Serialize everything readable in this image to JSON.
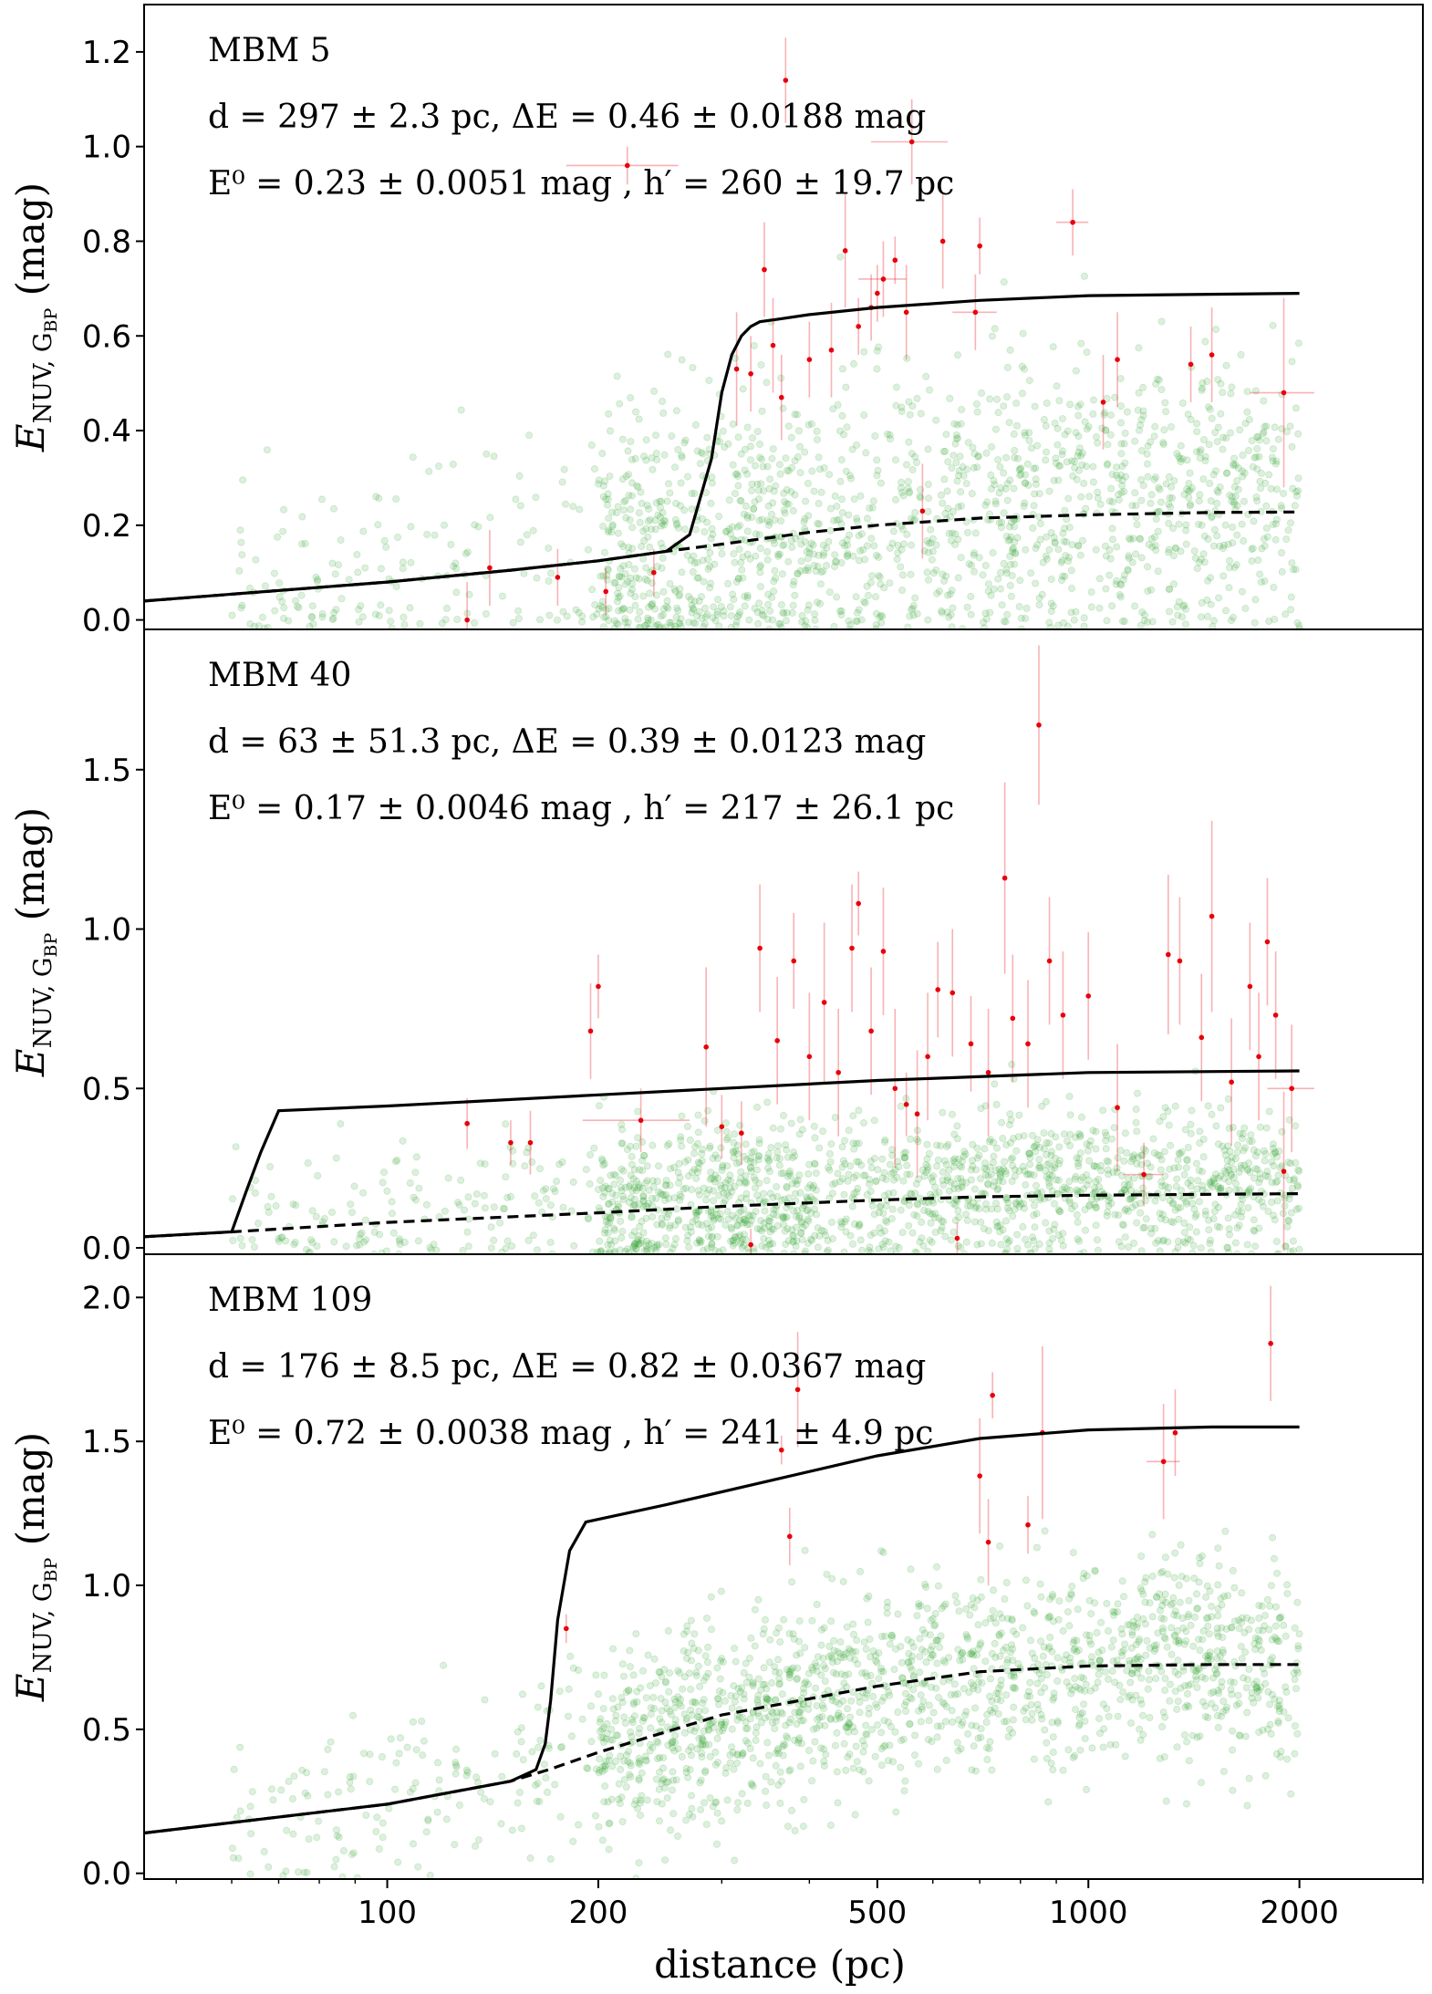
{
  "chart_data": [
    {
      "type": "scatter",
      "name_label": "MBM 5",
      "ann_line2": "d = 297 ± 2.3 pc,  ΔE = 0.46 ± 0.0188 mag",
      "ann_line3": "E⁰ = 0.23 ± 0.0051 mag ,  h′ = 260 ± 19.7 pc",
      "ylabel": "E NUV, G BP (mag)",
      "ylim": [
        -0.02,
        1.3
      ],
      "xscale": "log",
      "xlim": [
        45,
        3000
      ],
      "yticks": [
        "0.0",
        "0.2",
        "0.4",
        "0.6",
        "0.8",
        "1.0",
        "1.2"
      ],
      "ytick_values": [
        0,
        0.2,
        0.4,
        0.6,
        0.8,
        1.0,
        1.2
      ],
      "params": {
        "d": 297,
        "dE": 0.46,
        "E0": 0.23,
        "h": 260,
        "bg_spread": 0.16
      },
      "series": [
        {
          "name": "total",
          "style": "solid",
          "x": [
            45,
            100,
            150,
            200,
            250,
            270,
            290,
            300,
            310,
            320,
            330,
            340,
            360,
            400,
            500,
            700,
            1000,
            2000
          ],
          "y": [
            0.04,
            0.08,
            0.105,
            0.125,
            0.145,
            0.18,
            0.34,
            0.48,
            0.56,
            0.6,
            0.62,
            0.63,
            0.635,
            0.645,
            0.66,
            0.675,
            0.685,
            0.69
          ]
        },
        {
          "name": "foreground",
          "style": "dashed",
          "x": [
            45,
            100,
            150,
            200,
            250,
            300,
            400,
            500,
            700,
            1000,
            1500,
            2000
          ],
          "y": [
            0.04,
            0.08,
            0.105,
            0.125,
            0.145,
            0.16,
            0.185,
            0.2,
            0.215,
            0.222,
            0.227,
            0.228
          ]
        }
      ],
      "red_points": [
        {
          "x": 130,
          "y": 0.0,
          "ey": 0.08
        },
        {
          "x": 140,
          "y": 0.11,
          "ey": 0.08
        },
        {
          "x": 175,
          "y": 0.09,
          "ey": 0.06
        },
        {
          "x": 205,
          "y": 0.06,
          "ey": 0.05
        },
        {
          "x": 220,
          "y": 0.96,
          "ex": 40,
          "ey": 0.04
        },
        {
          "x": 240,
          "y": 0.1,
          "ey": 0.05
        },
        {
          "x": 315,
          "y": 0.53,
          "ey": 0.12
        },
        {
          "x": 330,
          "y": 0.52,
          "ey": 0.08
        },
        {
          "x": 345,
          "y": 0.74,
          "ey": 0.1
        },
        {
          "x": 355,
          "y": 0.58,
          "ey": 0.1
        },
        {
          "x": 365,
          "y": 0.47,
          "ey": 0.09
        },
        {
          "x": 370,
          "y": 1.14,
          "ey": 0.09
        },
        {
          "x": 400,
          "y": 0.55,
          "ey": 0.08
        },
        {
          "x": 430,
          "y": 0.57,
          "ey": 0.1
        },
        {
          "x": 450,
          "y": 0.78,
          "ey": 0.12
        },
        {
          "x": 470,
          "y": 0.62,
          "ey": 0.06
        },
        {
          "x": 490,
          "y": 0.66,
          "ey": 0.07
        },
        {
          "x": 500,
          "y": 0.69,
          "ey": 0.06
        },
        {
          "x": 510,
          "y": 0.72,
          "ex": 40,
          "ey": 0.08
        },
        {
          "x": 530,
          "y": 0.76,
          "ey": 0.05
        },
        {
          "x": 550,
          "y": 0.65,
          "ey": 0.1
        },
        {
          "x": 560,
          "y": 1.01,
          "ex": 70,
          "ey": 0.09
        },
        {
          "x": 620,
          "y": 0.8,
          "ey": 0.1
        },
        {
          "x": 690,
          "y": 0.65,
          "ex": 50,
          "ey": 0.08
        },
        {
          "x": 700,
          "y": 0.79,
          "ey": 0.06
        },
        {
          "x": 580,
          "y": 0.23,
          "ey": 0.1
        },
        {
          "x": 950,
          "y": 0.84,
          "ex": 50,
          "ey": 0.07
        },
        {
          "x": 1050,
          "y": 0.46,
          "ey": 0.1
        },
        {
          "x": 1100,
          "y": 0.55,
          "ey": 0.1
        },
        {
          "x": 1400,
          "y": 0.54,
          "ey": 0.08
        },
        {
          "x": 1500,
          "y": 0.56,
          "ey": 0.1
        },
        {
          "x": 1900,
          "y": 0.48,
          "ex": 200,
          "ey": 0.2
        }
      ]
    },
    {
      "type": "scatter",
      "name_label": "MBM 40",
      "ann_line2": "d = 63 ± 51.3 pc,  ΔE = 0.39 ± 0.0123 mag",
      "ann_line3": "E⁰ = 0.17 ± 0.0046 mag ,  h′ = 217 ± 26.1 pc",
      "ylabel": "E NUV, G BP (mag)",
      "ylim": [
        -0.02,
        1.94
      ],
      "xscale": "log",
      "xlim": [
        45,
        3000
      ],
      "yticks": [
        "0.0",
        "0.5",
        "1.0",
        "1.5"
      ],
      "ytick_values": [
        0,
        0.5,
        1.0,
        1.5
      ],
      "params": {
        "d": 63,
        "dE": 0.39,
        "E0": 0.17,
        "h": 217,
        "bg_spread": 0.12
      },
      "series": [
        {
          "name": "total",
          "style": "solid",
          "x": [
            45,
            60,
            63,
            66,
            70,
            100,
            200,
            500,
            1000,
            2000
          ],
          "y": [
            0.035,
            0.05,
            0.18,
            0.3,
            0.43,
            0.445,
            0.48,
            0.525,
            0.55,
            0.555
          ]
        },
        {
          "name": "foreground",
          "style": "dashed",
          "x": [
            45,
            60,
            100,
            200,
            300,
            500,
            700,
            1000,
            1500,
            2000
          ],
          "y": [
            0.035,
            0.05,
            0.08,
            0.11,
            0.13,
            0.15,
            0.16,
            0.165,
            0.168,
            0.17
          ]
        }
      ],
      "red_points": [
        {
          "x": 130,
          "y": 0.39,
          "ey": 0.08
        },
        {
          "x": 150,
          "y": 0.33,
          "ey": 0.07
        },
        {
          "x": 160,
          "y": 0.33,
          "ey": 0.1
        },
        {
          "x": 195,
          "y": 0.68,
          "ey": 0.15
        },
        {
          "x": 200,
          "y": 0.82,
          "ey": 0.1
        },
        {
          "x": 230,
          "y": 0.4,
          "ex": 40,
          "ey": 0.1
        },
        {
          "x": 285,
          "y": 0.63,
          "ey": 0.25
        },
        {
          "x": 300,
          "y": 0.38,
          "ey": 0.1
        },
        {
          "x": 320,
          "y": 0.36,
          "ey": 0.1
        },
        {
          "x": 340,
          "y": 0.94,
          "ey": 0.2
        },
        {
          "x": 360,
          "y": 0.65,
          "ey": 0.2
        },
        {
          "x": 380,
          "y": 0.9,
          "ey": 0.15
        },
        {
          "x": 400,
          "y": 0.6,
          "ey": 0.2
        },
        {
          "x": 420,
          "y": 0.77,
          "ey": 0.25
        },
        {
          "x": 440,
          "y": 0.55,
          "ey": 0.2
        },
        {
          "x": 460,
          "y": 0.94,
          "ey": 0.2
        },
        {
          "x": 470,
          "y": 1.08,
          "ey": 0.1
        },
        {
          "x": 490,
          "y": 0.68,
          "ey": 0.2
        },
        {
          "x": 510,
          "y": 0.93,
          "ey": 0.2
        },
        {
          "x": 530,
          "y": 0.5,
          "ey": 0.25
        },
        {
          "x": 550,
          "y": 0.45,
          "ey": 0.1
        },
        {
          "x": 570,
          "y": 0.42,
          "ey": 0.2
        },
        {
          "x": 590,
          "y": 0.6,
          "ey": 0.2
        },
        {
          "x": 610,
          "y": 0.81,
          "ey": 0.15
        },
        {
          "x": 640,
          "y": 0.8,
          "ey": 0.2
        },
        {
          "x": 680,
          "y": 0.64,
          "ey": 0.15
        },
        {
          "x": 720,
          "y": 0.55,
          "ey": 0.2
        },
        {
          "x": 760,
          "y": 1.16,
          "ey": 0.3
        },
        {
          "x": 780,
          "y": 0.72,
          "ey": 0.2
        },
        {
          "x": 820,
          "y": 0.64,
          "ey": 0.2
        },
        {
          "x": 850,
          "y": 1.64,
          "ey": 0.25
        },
        {
          "x": 880,
          "y": 0.9,
          "ey": 0.2
        },
        {
          "x": 920,
          "y": 0.73,
          "ey": 0.2
        },
        {
          "x": 1000,
          "y": 0.79,
          "ey": 0.2
        },
        {
          "x": 1100,
          "y": 0.44,
          "ey": 0.2
        },
        {
          "x": 1200,
          "y": 0.23,
          "ex": 80,
          "ey": 0.1
        },
        {
          "x": 1300,
          "y": 0.92,
          "ey": 0.25
        },
        {
          "x": 1350,
          "y": 0.9,
          "ey": 0.2
        },
        {
          "x": 1450,
          "y": 0.66,
          "ey": 0.2
        },
        {
          "x": 1500,
          "y": 1.04,
          "ey": 0.3
        },
        {
          "x": 1600,
          "y": 0.52,
          "ey": 0.2
        },
        {
          "x": 1700,
          "y": 0.82,
          "ey": 0.2
        },
        {
          "x": 1750,
          "y": 0.6,
          "ey": 0.2
        },
        {
          "x": 1800,
          "y": 0.96,
          "ey": 0.2
        },
        {
          "x": 1850,
          "y": 0.73,
          "ey": 0.2
        },
        {
          "x": 1900,
          "y": 0.24,
          "ey": 0.25
        },
        {
          "x": 1950,
          "y": 0.5,
          "ex": 150,
          "ey": 0.2
        },
        {
          "x": 650,
          "y": 0.03,
          "ey": 0.05
        },
        {
          "x": 330,
          "y": 0.01,
          "ey": 0.05
        }
      ]
    },
    {
      "type": "scatter",
      "name_label": "MBM 109",
      "ann_line2": "d = 176 ± 8.5 pc,  ΔE = 0.82 ± 0.0367 mag",
      "ann_line3": "E⁰ = 0.72 ± 0.0038 mag ,  h′ = 241 ± 4.9 pc",
      "ylabel": "E NUV, G BP (mag)",
      "ylim": [
        -0.02,
        2.15
      ],
      "xscale": "log",
      "xlim": [
        45,
        3000
      ],
      "yticks": [
        "0.0",
        "0.5",
        "1.0",
        "1.5",
        "2.0"
      ],
      "ytick_values": [
        0,
        0.5,
        1.0,
        1.5,
        2.0
      ],
      "params": {
        "d": 176,
        "dE": 0.82,
        "E0": 0.72,
        "h": 241,
        "bg_spread": 0.17
      },
      "series": [
        {
          "name": "total",
          "style": "solid",
          "x": [
            45,
            100,
            150,
            163,
            168,
            171,
            175,
            182,
            192,
            250,
            500,
            700,
            1000,
            1500,
            2000
          ],
          "y": [
            0.14,
            0.24,
            0.32,
            0.36,
            0.45,
            0.6,
            0.88,
            1.12,
            1.22,
            1.28,
            1.45,
            1.51,
            1.54,
            1.55,
            1.55
          ]
        },
        {
          "name": "foreground",
          "style": "dashed",
          "x": [
            45,
            100,
            150,
            170,
            200,
            300,
            500,
            700,
            1000,
            1500,
            2000
          ],
          "y": [
            0.14,
            0.24,
            0.32,
            0.36,
            0.42,
            0.55,
            0.65,
            0.7,
            0.72,
            0.725,
            0.725
          ]
        }
      ],
      "red_points": [
        {
          "x": 180,
          "y": 0.85,
          "ey": 0.05
        },
        {
          "x": 365,
          "y": 1.47,
          "ey": 0.05
        },
        {
          "x": 375,
          "y": 1.17,
          "ey": 0.1
        },
        {
          "x": 385,
          "y": 1.68,
          "ey": 0.2
        },
        {
          "x": 700,
          "y": 1.38,
          "ey": 0.2
        },
        {
          "x": 720,
          "y": 1.15,
          "ey": 0.15
        },
        {
          "x": 730,
          "y": 1.66,
          "ey": 0.08
        },
        {
          "x": 820,
          "y": 1.21,
          "ey": 0.1
        },
        {
          "x": 860,
          "y": 1.53,
          "ey": 0.3
        },
        {
          "x": 1280,
          "y": 1.43,
          "ex": 70,
          "ey": 0.2
        },
        {
          "x": 1330,
          "y": 1.53,
          "ey": 0.15
        },
        {
          "x": 1820,
          "y": 1.84,
          "ey": 0.2
        }
      ]
    }
  ],
  "xlabel": "distance (pc)",
  "xticks": [
    "100",
    "200",
    "500",
    "1000",
    "2000"
  ],
  "xtick_values": [
    100,
    200,
    500,
    1000,
    2000
  ],
  "colors": {
    "background_points": "#2ca02c",
    "red_points": "#e8000b",
    "curve": "#000000"
  }
}
